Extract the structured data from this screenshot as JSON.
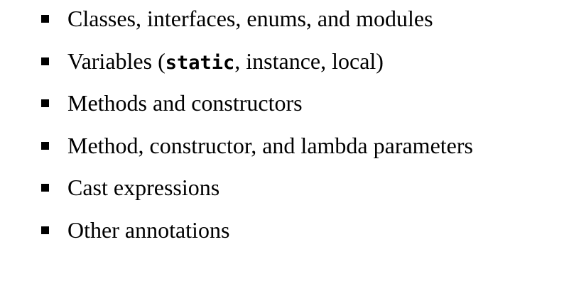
{
  "list": {
    "items": [
      {
        "text": "Classes, interfaces, enums, and modules"
      },
      {
        "before": "Variables (",
        "code": "static",
        "after": ", instance, local)"
      },
      {
        "text": "Methods and constructors"
      },
      {
        "text": "Method, constructor, and lambda parameters"
      },
      {
        "text": "Cast expressions"
      },
      {
        "text": "Other annotations"
      }
    ]
  }
}
